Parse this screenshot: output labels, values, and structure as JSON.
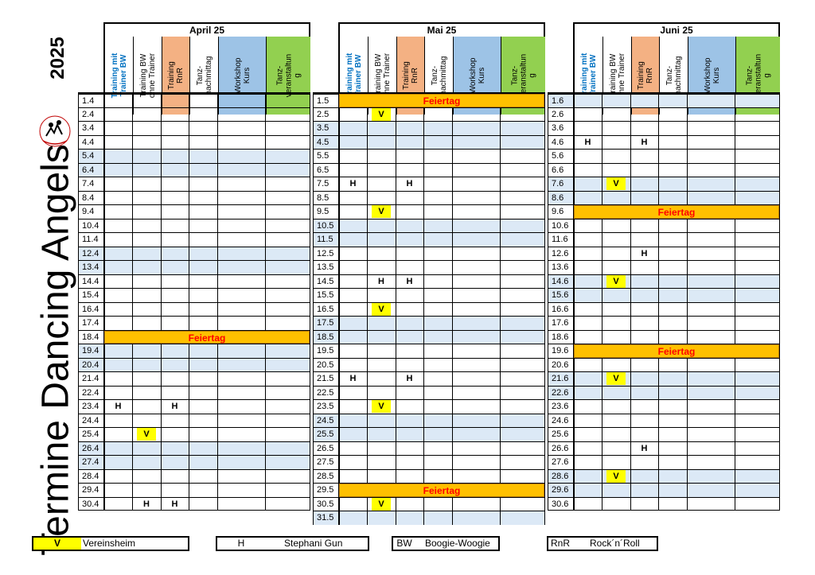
{
  "title": "Termine Dancing Angels",
  "year": "2025",
  "columns": [
    "Training mit Trainer BW",
    "Training BW ohne Trainer",
    "Training RnR",
    "Tanz-nachmittag",
    "Workshop Kurs",
    "Tanz-veranstaltung"
  ],
  "column_lines": [
    [
      "Training mit",
      "Trainer BW"
    ],
    [
      "Training BW",
      "ohne Trainer"
    ],
    [
      "Training",
      "RnR"
    ],
    [
      "Tanz-",
      "nachmittag"
    ],
    [
      "Workshop",
      "Kurs"
    ],
    [
      "Tanz-",
      "veranstaltun",
      "g"
    ]
  ],
  "colors": {
    "blue_header": "#0070c0",
    "col_training": "#ffffff",
    "col_rnr": "#f4b183",
    "col_tanz": "#ffffff",
    "col_workshop": "#9dc3e6",
    "col_veranst": "#92d050",
    "shade": "#dce9f6",
    "holiday": "#ffc000",
    "holiday_text": "#ff0000",
    "v_mark": "#ffff00"
  },
  "holiday_label": "Feiertag",
  "months": [
    {
      "name": "April 25",
      "days": [
        "1.4",
        "2.4",
        "3.4",
        "4.4",
        "5.4",
        "6.4",
        "7.4",
        "8.4",
        "9.4",
        "10.4",
        "11.4",
        "12.4",
        "13.4",
        "14.4",
        "15.4",
        "16.4",
        "17.4",
        "18.4",
        "19.4",
        "20.4",
        "21.4",
        "22.4",
        "23.4",
        "24.4",
        "25.4",
        "26.4",
        "27.4",
        "28.4",
        "29.4",
        "30.4"
      ],
      "shaded": [
        4,
        5,
        11,
        12,
        18,
        19,
        25,
        26
      ],
      "holidays": [
        17
      ],
      "marks": [
        {
          "row": 22,
          "col": 0,
          "text": "H"
        },
        {
          "row": 22,
          "col": 2,
          "text": "H"
        },
        {
          "row": 24,
          "col": 1,
          "text": "V"
        },
        {
          "row": 29,
          "col": 1,
          "text": "H"
        },
        {
          "row": 29,
          "col": 2,
          "text": "H"
        }
      ]
    },
    {
      "name": "Mai 25",
      "days": [
        "1.5",
        "2.5",
        "3.5",
        "4.5",
        "5.5",
        "6.5",
        "7.5",
        "8.5",
        "9.5",
        "10.5",
        "11.5",
        "12.5",
        "13.5",
        "14.5",
        "15.5",
        "16.5",
        "17.5",
        "18.5",
        "19.5",
        "20.5",
        "21.5",
        "22.5",
        "23.5",
        "24.5",
        "25.5",
        "26.5",
        "27.5",
        "28.5",
        "29.5",
        "30.5",
        "31.5"
      ],
      "shaded": [
        2,
        3,
        9,
        10,
        16,
        17,
        23,
        24,
        30
      ],
      "holidays": [
        0,
        28
      ],
      "marks": [
        {
          "row": 1,
          "col": 1,
          "text": "V"
        },
        {
          "row": 6,
          "col": 0,
          "text": "H"
        },
        {
          "row": 6,
          "col": 2,
          "text": "H"
        },
        {
          "row": 8,
          "col": 1,
          "text": "V"
        },
        {
          "row": 13,
          "col": 1,
          "text": "H"
        },
        {
          "row": 13,
          "col": 2,
          "text": "H"
        },
        {
          "row": 15,
          "col": 1,
          "text": "V"
        },
        {
          "row": 20,
          "col": 0,
          "text": "H"
        },
        {
          "row": 20,
          "col": 2,
          "text": "H"
        },
        {
          "row": 22,
          "col": 1,
          "text": "V"
        },
        {
          "row": 29,
          "col": 1,
          "text": "V"
        }
      ]
    },
    {
      "name": "Juni 25",
      "days": [
        "1.6",
        "2.6",
        "3.6",
        "4.6",
        "5.6",
        "6.6",
        "7.6",
        "8.6",
        "9.6",
        "10.6",
        "11.6",
        "12.6",
        "13.6",
        "14.6",
        "15.6",
        "16.6",
        "17.6",
        "18.6",
        "19.6",
        "20.6",
        "21.6",
        "22.6",
        "23.6",
        "24.6",
        "25.6",
        "26.6",
        "27.6",
        "28.6",
        "29.6",
        "30.6"
      ],
      "shaded": [
        0,
        6,
        7,
        13,
        14,
        20,
        21,
        27,
        28
      ],
      "holidays": [
        8,
        18
      ],
      "marks": [
        {
          "row": 3,
          "col": 0,
          "text": "H"
        },
        {
          "row": 3,
          "col": 2,
          "text": "H"
        },
        {
          "row": 6,
          "col": 1,
          "text": "V"
        },
        {
          "row": 11,
          "col": 2,
          "text": "H"
        },
        {
          "row": 13,
          "col": 1,
          "text": "V"
        },
        {
          "row": 20,
          "col": 1,
          "text": "V"
        },
        {
          "row": 25,
          "col": 2,
          "text": "H"
        },
        {
          "row": 27,
          "col": 1,
          "text": "V"
        }
      ]
    }
  ],
  "legend": [
    {
      "key": "V",
      "label": "Vereinsheim"
    },
    {
      "key": "H",
      "label": "Stephani Gun"
    },
    {
      "key": "BW",
      "label": "Boogie-Woogie"
    },
    {
      "key": "RnR",
      "label": "Rock´n´Roll"
    }
  ]
}
